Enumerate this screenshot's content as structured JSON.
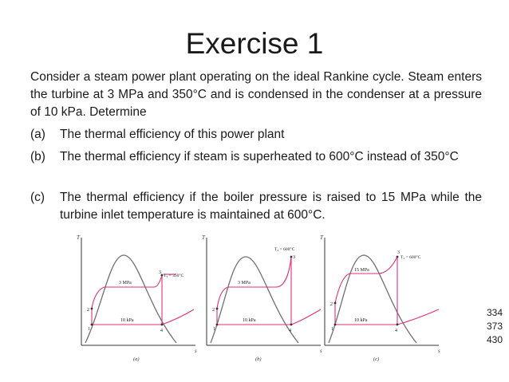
{
  "slide": {
    "title": "Exercise 1",
    "intro": "Consider a steam power plant operating on the ideal Rankine cycle. Steam enters the turbine at 3 MPa and 350°C and is condensed in the condenser at a pressure of 10 kPa. Determine",
    "parts": [
      {
        "label": "(a)",
        "text": "The thermal efficiency of this power plant"
      },
      {
        "label": "(b)",
        "text": "The thermal efficiency if steam is superheated to 600°C instead of 350°C"
      },
      {
        "label": "(c)",
        "text": "The thermal efficiency if the boiler pressure is raised to 15 MPa while the turbine inlet temperature is maintained at 600°C."
      }
    ],
    "page_refs": [
      "334",
      "373",
      "430"
    ]
  },
  "diagrams": [
    {
      "caption": "(a)",
      "y_axis": "T",
      "x_axis": "s",
      "high_p": "3 MPa",
      "low_p": "10 kPa",
      "temp_label": "T₃ = 350°C",
      "states": [
        "1",
        "2",
        "3",
        "4"
      ]
    },
    {
      "caption": "(b)",
      "y_axis": "T",
      "x_axis": "s",
      "high_p": "3 MPa",
      "low_p": "10 kPa",
      "temp_label": "T₃ = 600°C",
      "states": [
        "1",
        "2",
        "3",
        "4"
      ]
    },
    {
      "caption": "(c)",
      "y_axis": "T",
      "x_axis": "s",
      "high_p": "15 MPa",
      "low_p": "10 kPa",
      "temp_label": "T₃ = 600°C",
      "states": [
        "1",
        "2",
        "3",
        "4"
      ]
    }
  ],
  "colors": {
    "cycle": "#e0307a",
    "dome": "#707070",
    "axes": "#333333"
  }
}
